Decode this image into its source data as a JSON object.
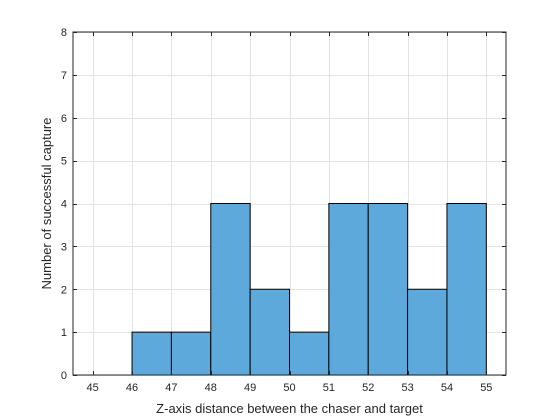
{
  "chart_data": {
    "type": "bar",
    "subtype": "histogram",
    "xlabel": "Z-axis distance between the chaser and target",
    "ylabel": "Number of successful capture",
    "xlim": [
      44.5,
      55.5
    ],
    "ylim": [
      0,
      8
    ],
    "xticks": [
      45,
      46,
      47,
      48,
      49,
      50,
      51,
      52,
      53,
      54,
      55
    ],
    "yticks": [
      0,
      1,
      2,
      3,
      4,
      5,
      6,
      7,
      8
    ],
    "grid": true,
    "bin_edges": [
      46,
      47,
      48,
      49,
      50,
      51,
      52,
      53,
      54,
      55
    ],
    "values": [
      1,
      1,
      4,
      2,
      1,
      4,
      4,
      2,
      4
    ],
    "colors": {
      "bar_fill": "#5ea9db",
      "bar_edge": "#000000",
      "grid": "#e3e3e3",
      "axis": "#262626"
    }
  }
}
